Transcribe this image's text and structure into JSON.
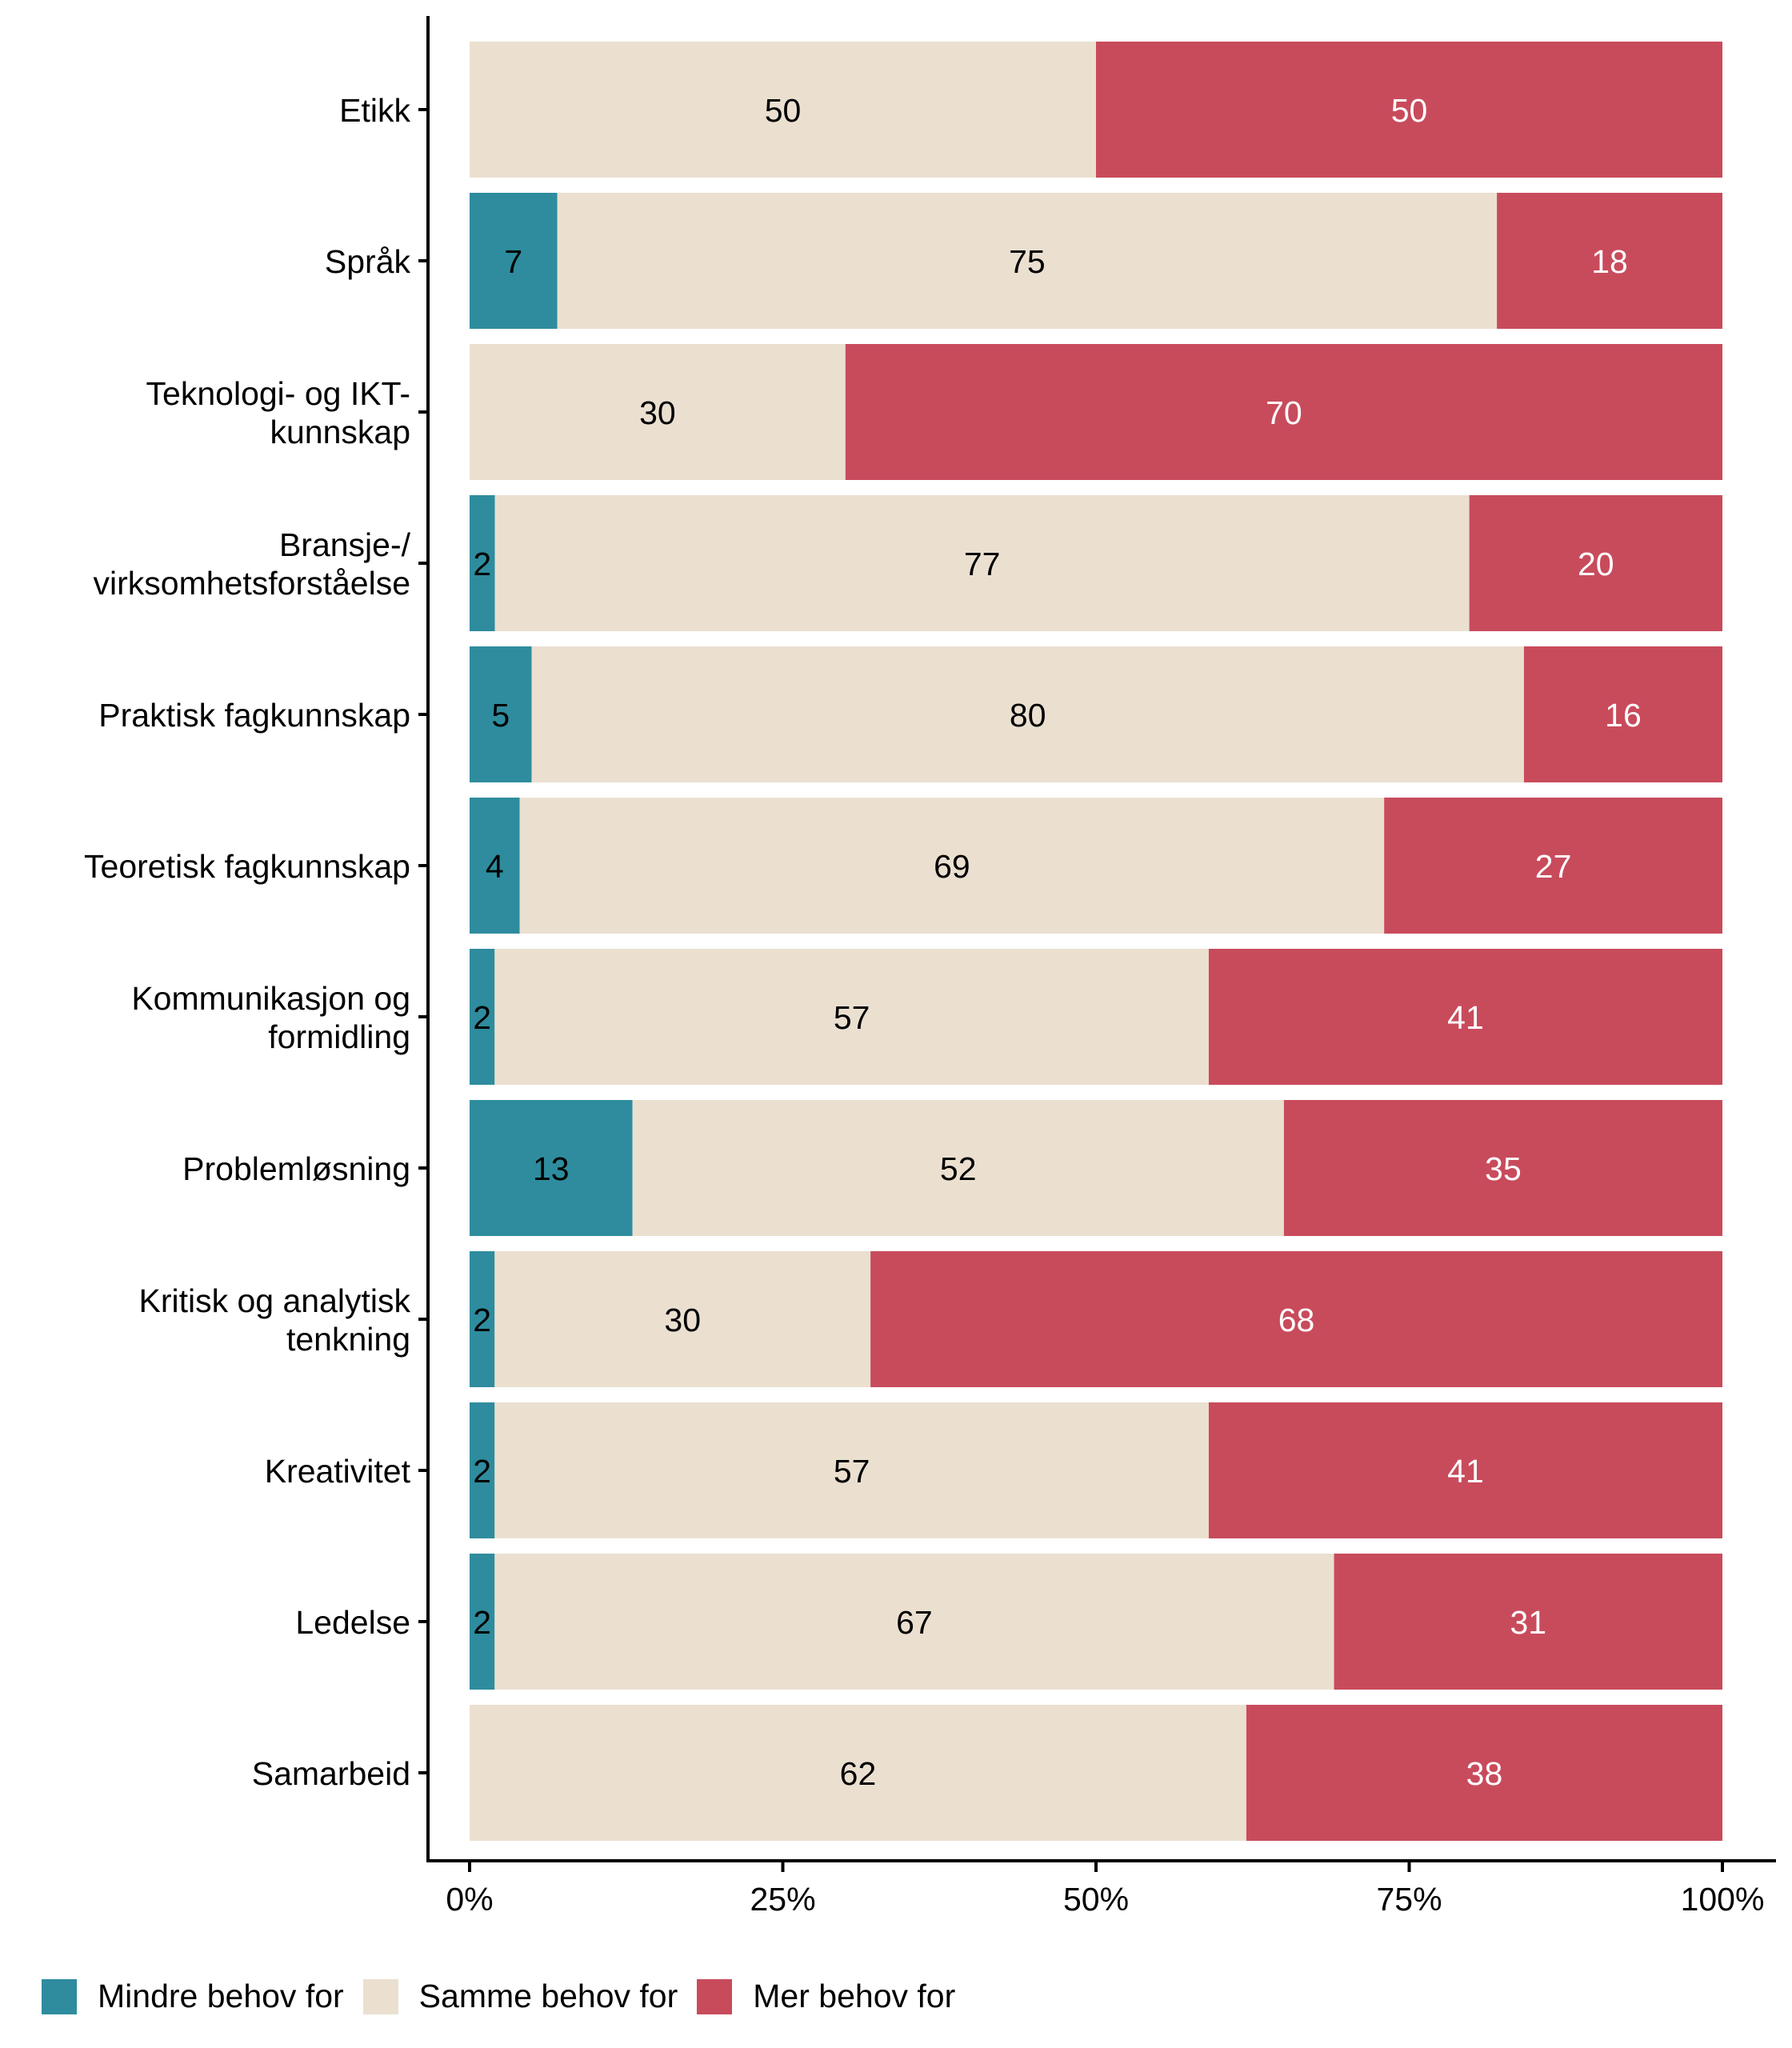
{
  "chart_data": {
    "type": "bar",
    "orientation": "horizontal",
    "stacked": "percent",
    "title": "",
    "xlabel": "",
    "ylabel": "",
    "xlim": [
      0,
      100
    ],
    "x_ticks": [
      "0%",
      "25%",
      "50%",
      "75%",
      "100%"
    ],
    "x_tick_values": [
      0,
      25,
      50,
      75,
      100
    ],
    "grid": false,
    "legend_position": "bottom-left",
    "categories": [
      "Etikk",
      "Språk",
      "Teknologi- og IKT-\nkunnskap",
      "Bransje-/\nvirksomhetsforståelse",
      "Praktisk fagkunnskap",
      "Teoretisk fagkunnskap",
      "Kommunikasjon og\nformidling",
      "Problemløsning",
      "Kritisk og analytisk\ntenkning",
      "Kreativitet",
      "Ledelse",
      "Samarbeid"
    ],
    "series": [
      {
        "name": "Mindre behov for",
        "color": "#2e8c9e",
        "label_color": "#000000",
        "values": [
          0,
          7,
          0,
          2,
          5,
          4,
          2,
          13,
          2,
          2,
          2,
          0
        ]
      },
      {
        "name": "Samme behov for",
        "color": "#ebe0d0",
        "label_color": "#000000",
        "values": [
          50,
          75,
          30,
          77,
          80,
          69,
          57,
          52,
          30,
          57,
          67,
          62
        ]
      },
      {
        "name": "Mer behov for",
        "color": "#c84b5c",
        "label_color": "#ffffff",
        "values": [
          50,
          18,
          70,
          20,
          16,
          27,
          41,
          35,
          68,
          41,
          31,
          38
        ]
      }
    ]
  }
}
